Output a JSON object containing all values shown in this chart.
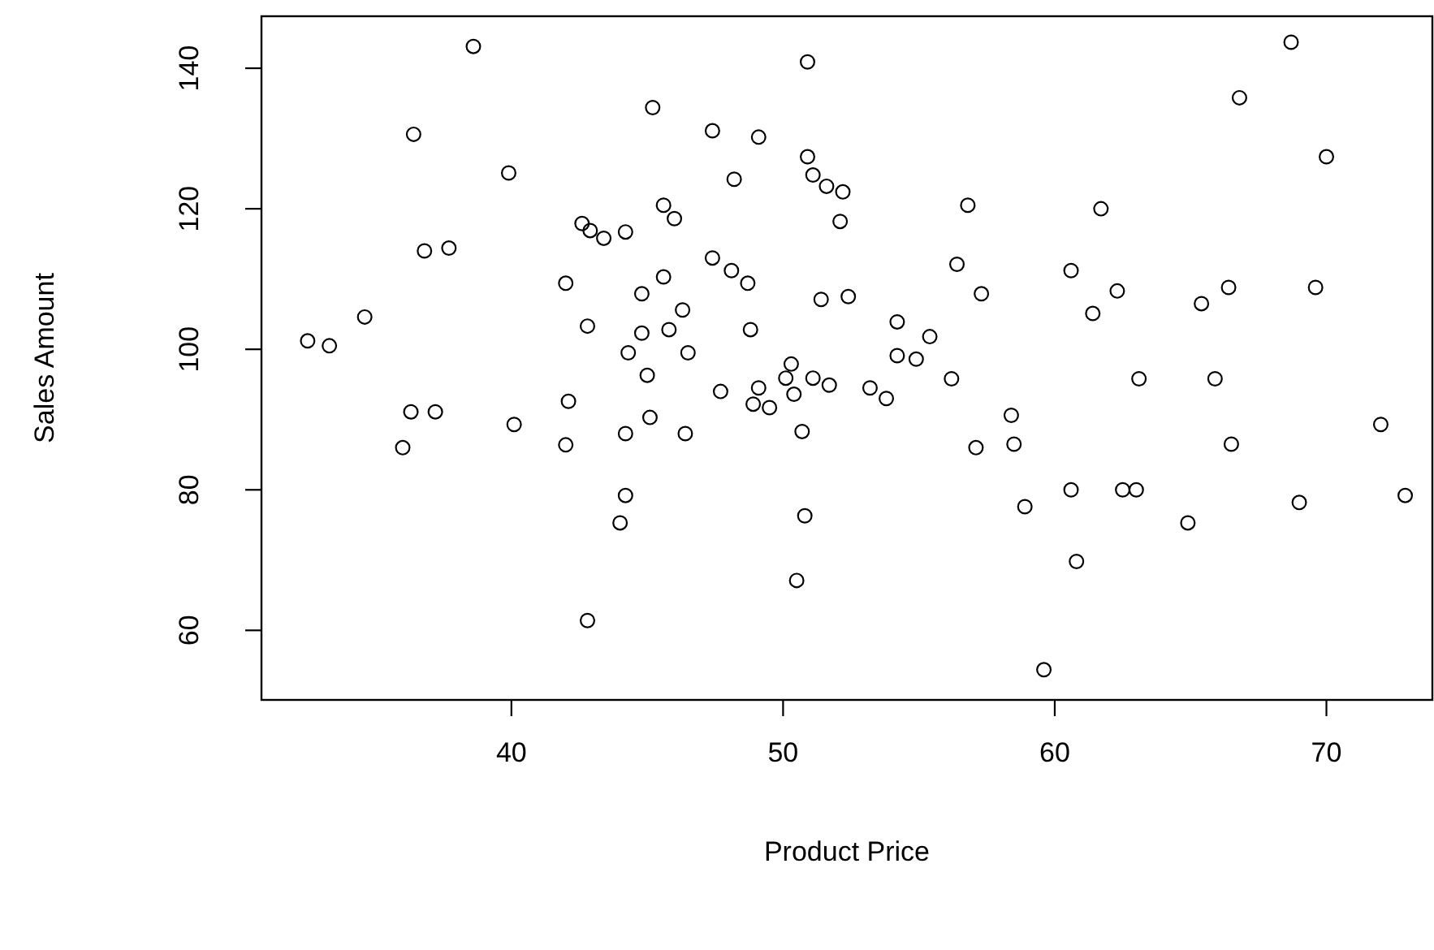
{
  "chart_data": {
    "type": "scatter",
    "xlabel": "Product Price",
    "ylabel": "Sales Amount",
    "marker": "circle",
    "xlim": [
      30.8,
      73.9
    ],
    "ylim": [
      50.1,
      147.4
    ],
    "xticks": [
      40,
      50,
      60,
      70
    ],
    "yticks": [
      60,
      80,
      100,
      120,
      140
    ],
    "series": [
      {
        "color": "#000000",
        "x": [
          38.6,
          36.4,
          36.8,
          37.7,
          34.6,
          32.5,
          33.3,
          36.3,
          37.2,
          36.0,
          50.9,
          45.2,
          47.4,
          49.1,
          39.9,
          50.9,
          51.1,
          51.6,
          52.2,
          48.2,
          52.1,
          45.6,
          46.0,
          42.6,
          42.9,
          43.4,
          44.2,
          47.4,
          48.1,
          48.7,
          42.0,
          45.6,
          44.8,
          51.4,
          52.4,
          46.3,
          42.8,
          44.8,
          45.8,
          48.8,
          44.3,
          46.5,
          45.0,
          54.2,
          55.4,
          54.2,
          54.9,
          50.3,
          50.1,
          50.4,
          51.1,
          51.7,
          53.2,
          53.8,
          47.7,
          49.1,
          48.9,
          49.5,
          42.1,
          40.1,
          42.0,
          45.1,
          44.2,
          46.4,
          50.7,
          44.2,
          44.0,
          50.8,
          50.5,
          42.8,
          68.7,
          66.8,
          70.0,
          56.8,
          61.7,
          56.4,
          57.3,
          60.6,
          62.3,
          61.4,
          65.4,
          66.4,
          69.6,
          56.2,
          63.1,
          65.9,
          58.4,
          58.5,
          57.1,
          66.5,
          72.0,
          58.9,
          60.6,
          62.5,
          63.0,
          64.9,
          69.0,
          72.9,
          60.8,
          59.6
        ],
        "values": [
          143.1,
          130.6,
          114.0,
          114.4,
          104.6,
          101.2,
          100.5,
          91.1,
          91.1,
          86.0,
          140.9,
          134.4,
          131.1,
          130.2,
          125.1,
          127.4,
          124.8,
          123.2,
          122.4,
          124.2,
          118.2,
          120.5,
          118.6,
          117.9,
          116.9,
          115.8,
          116.7,
          113.0,
          111.2,
          109.4,
          109.4,
          110.3,
          107.9,
          107.1,
          107.5,
          105.6,
          103.3,
          102.3,
          102.8,
          102.8,
          99.5,
          99.5,
          96.3,
          103.9,
          101.8,
          99.1,
          98.6,
          97.9,
          95.9,
          93.6,
          95.9,
          94.9,
          94.5,
          93.0,
          94.0,
          94.5,
          92.2,
          91.7,
          92.6,
          89.3,
          86.4,
          90.3,
          88.0,
          88.0,
          88.3,
          79.2,
          75.3,
          76.3,
          67.1,
          61.4,
          143.7,
          135.8,
          127.4,
          120.5,
          120.0,
          112.1,
          107.9,
          111.2,
          108.3,
          105.1,
          106.5,
          108.8,
          108.8,
          95.8,
          95.8,
          95.8,
          90.6,
          86.5,
          86.0,
          86.5,
          89.3,
          77.6,
          80.0,
          80.0,
          80.0,
          75.3,
          78.2,
          79.2,
          69.8,
          54.4
        ]
      }
    ]
  }
}
